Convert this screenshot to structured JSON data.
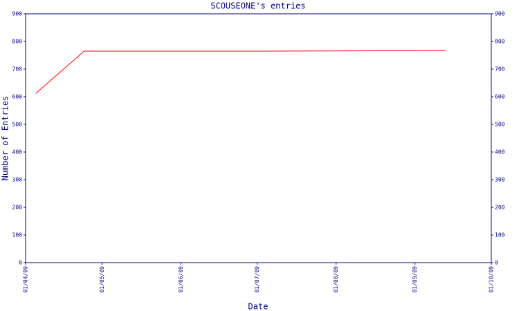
{
  "chart_data": {
    "type": "line",
    "title": "SCOUSEONE's entries",
    "x_label": "Date",
    "y_label": "Number of Entries",
    "x": [
      "05/04/09",
      "24/04/09",
      "03/07/09",
      "13/09/09"
    ],
    "series": [
      {
        "name": "entries",
        "color": "#ff0000",
        "values": [
          612,
          765,
          765,
          767
        ]
      }
    ],
    "xlim": [
      "01/04/09",
      "01/10/09"
    ],
    "xticks": [
      "01/04/09",
      "01/05/09",
      "01/06/09",
      "01/07/09",
      "01/08/09",
      "01/09/09",
      "01/10/09"
    ],
    "ylim": [
      0,
      900
    ],
    "yticks": [
      0,
      100,
      200,
      300,
      400,
      500,
      600,
      700,
      800,
      900
    ]
  }
}
